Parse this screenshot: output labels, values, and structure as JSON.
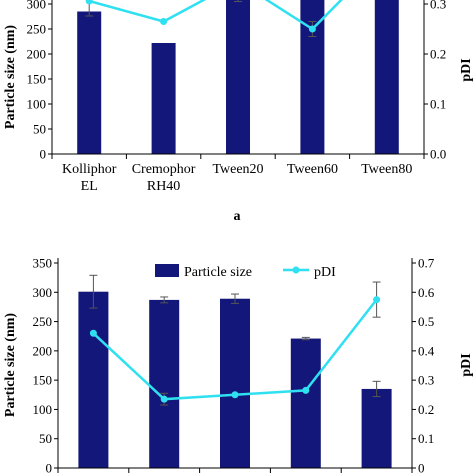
{
  "chart_data": [
    {
      "panel_label": "a",
      "type": "bar",
      "categories": [
        "Kolliphor EL",
        "Cremophor RH40",
        "Tween20",
        "Tween60",
        "Tween80"
      ],
      "category_lines": [
        [
          "Kolliphor",
          "EL"
        ],
        [
          "Cremophor",
          "RH40"
        ],
        [
          "Tween20"
        ],
        [
          "Tween60"
        ],
        [
          "Tween80"
        ]
      ],
      "ylabel": "Particle size (nm)",
      "y2label": "pDI",
      "ylim": [
        0,
        350
      ],
      "y2lim": [
        0,
        0.35
      ],
      "yticks": [
        0,
        50,
        100,
        150,
        200,
        250,
        300
      ],
      "y2ticks": [
        0.0,
        0.1,
        0.2,
        0.3
      ],
      "series": [
        {
          "name": "Particle size",
          "type": "bar",
          "axis": "left",
          "color": "#14177a",
          "values": [
            285,
            222,
            375,
            375,
            375
          ],
          "errors": [
            0,
            0,
            0,
            0,
            0
          ]
        },
        {
          "name": "pDI",
          "type": "line",
          "axis": "right",
          "color": "#2fe0f0",
          "values": [
            0.306,
            0.265,
            0.345,
            0.25,
            0.4
          ],
          "errors": [
            0.03,
            0,
            0.04,
            0.015,
            0
          ]
        }
      ]
    },
    {
      "type": "bar",
      "categories": [
        "",
        "",
        "",
        "",
        ""
      ],
      "ylabel": "Particle size (nm)",
      "y2label": "pDI",
      "ylim": [
        0,
        350
      ],
      "y2lim": [
        0,
        0.7
      ],
      "yticks": [
        0,
        50,
        100,
        150,
        200,
        250,
        300,
        350
      ],
      "y2ticks": [
        0,
        0.1,
        0.2,
        0.3,
        0.4,
        0.5,
        0.6,
        0.7
      ],
      "legend_position": "top-center",
      "series": [
        {
          "name": "Particle size",
          "type": "bar",
          "axis": "left",
          "color": "#14177a",
          "values": [
            301,
            287,
            289,
            221,
            135
          ],
          "errors": [
            28,
            5,
            8,
            2,
            13
          ]
        },
        {
          "name": "pDI",
          "type": "line",
          "axis": "right",
          "color": "#2fe0f0",
          "values": [
            0.46,
            0.235,
            0.25,
            0.265,
            0.575
          ],
          "errors": [
            0,
            0.02,
            0,
            0,
            0.06
          ]
        }
      ]
    }
  ]
}
